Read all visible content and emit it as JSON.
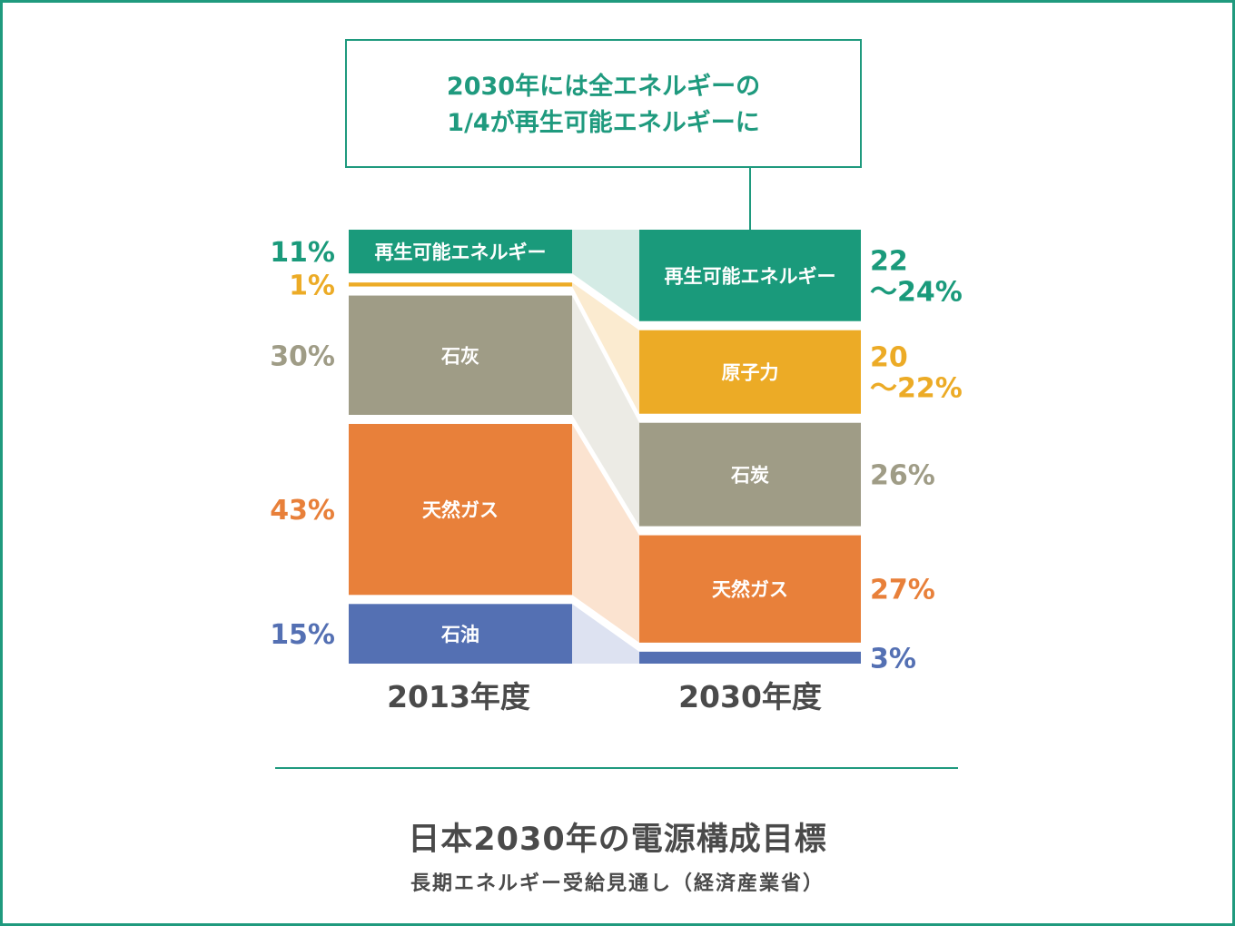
{
  "title": "日本2030年の電源構成目標",
  "subtitle": "長期エネルギー受給見通し（経済産業省）",
  "callout": {
    "line1": "2030年には全エネルギーの",
    "line2": "1/4が再生可能エネルギーに"
  },
  "colors": {
    "renewable": "#1a9a7b",
    "nuclear": "#ecab26",
    "coal": "#9f9c86",
    "gas": "#e8803a",
    "oil": "#5470b3"
  },
  "chart_data": {
    "type": "bar",
    "layout": "stacked-100-percent",
    "categories": [
      "2013年度",
      "2030年度"
    ],
    "series": [
      {
        "key": "renewable",
        "labels": [
          "再生可能エネルギー",
          "再生可能エネルギー"
        ],
        "values": [
          11,
          23
        ],
        "display": [
          "11%",
          "22\n～24%"
        ]
      },
      {
        "key": "nuclear",
        "labels": [
          "",
          "原子力"
        ],
        "values": [
          1,
          21
        ],
        "display": [
          "1%",
          "20\n～22%"
        ]
      },
      {
        "key": "coal",
        "labels": [
          "石灰",
          "石炭"
        ],
        "values": [
          30,
          26
        ],
        "display": [
          "30%",
          "26%"
        ]
      },
      {
        "key": "gas",
        "labels": [
          "天然ガス",
          "天然ガス"
        ],
        "values": [
          43,
          27
        ],
        "display": [
          "43%",
          "27%"
        ]
      },
      {
        "key": "oil",
        "labels": [
          "石油",
          ""
        ],
        "values": [
          15,
          3
        ],
        "display": [
          "15%",
          "3%"
        ]
      }
    ]
  }
}
